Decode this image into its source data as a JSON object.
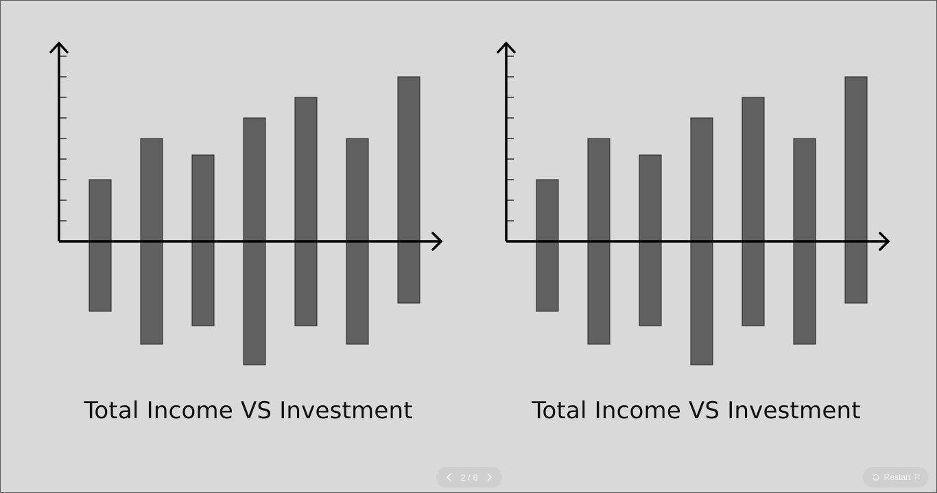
{
  "slide": {
    "charts": [
      {
        "title": "Total Income VS Investment"
      },
      {
        "title": "Total Income VS Investment"
      }
    ]
  },
  "nav": {
    "page_label": "2 / 6",
    "restart_label": "Restart",
    "restart_key": "R"
  },
  "colors": {
    "background": "#d9d9d9",
    "bar": "#606060",
    "axis": "#000000",
    "controls": "#cfcfcf"
  },
  "chart_data": [
    {
      "type": "bar",
      "title": "",
      "xlabel": "",
      "ylabel": "",
      "grid": false,
      "legend": "none",
      "ylim": [
        -6,
        9
      ],
      "series": [
        {
          "values": [
            3,
            5,
            4.2,
            6,
            7,
            5,
            8
          ]
        },
        {
          "values": [
            -3.4,
            -5,
            -4.1,
            -6,
            -4.1,
            -5,
            -3
          ]
        }
      ]
    },
    {
      "type": "bar",
      "title": "",
      "xlabel": "",
      "ylabel": "",
      "grid": false,
      "legend": "none",
      "ylim": [
        -6,
        9
      ],
      "series": [
        {
          "values": [
            3,
            5,
            4.2,
            6,
            7,
            5,
            8
          ]
        },
        {
          "values": [
            -3.4,
            -5,
            -4.1,
            -6,
            -4.1,
            -5,
            -3
          ]
        }
      ]
    }
  ]
}
